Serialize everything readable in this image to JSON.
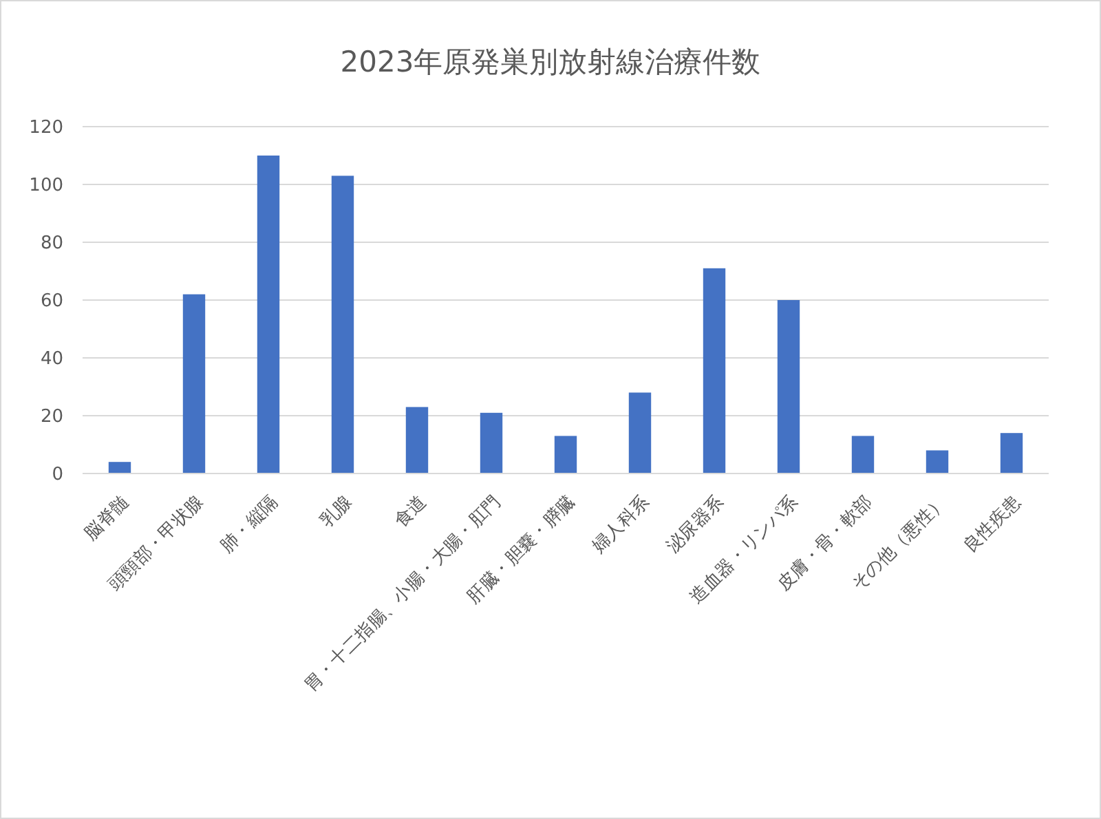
{
  "chart_data": {
    "type": "bar",
    "title": "2023年原発巣別放射線治療件数",
    "categories": [
      "脳脊髄",
      "頭頸部・甲状腺",
      "肺・縦隔",
      "乳腺",
      "食道",
      "胃・十二指腸、小腸・大腸・肛門",
      "肝臓・胆嚢・膵臓",
      "婦人科系",
      "泌尿器系",
      "造血器・リンパ系",
      "皮膚・骨・軟部",
      "その他（悪性）",
      "良性疾患"
    ],
    "values": [
      4,
      62,
      110,
      103,
      23,
      21,
      13,
      28,
      71,
      60,
      13,
      8,
      14
    ],
    "color": "#4472c4",
    "ylim": [
      0,
      120
    ],
    "yticks": [
      0,
      20,
      40,
      60,
      80,
      100,
      120
    ],
    "grid": "y"
  }
}
